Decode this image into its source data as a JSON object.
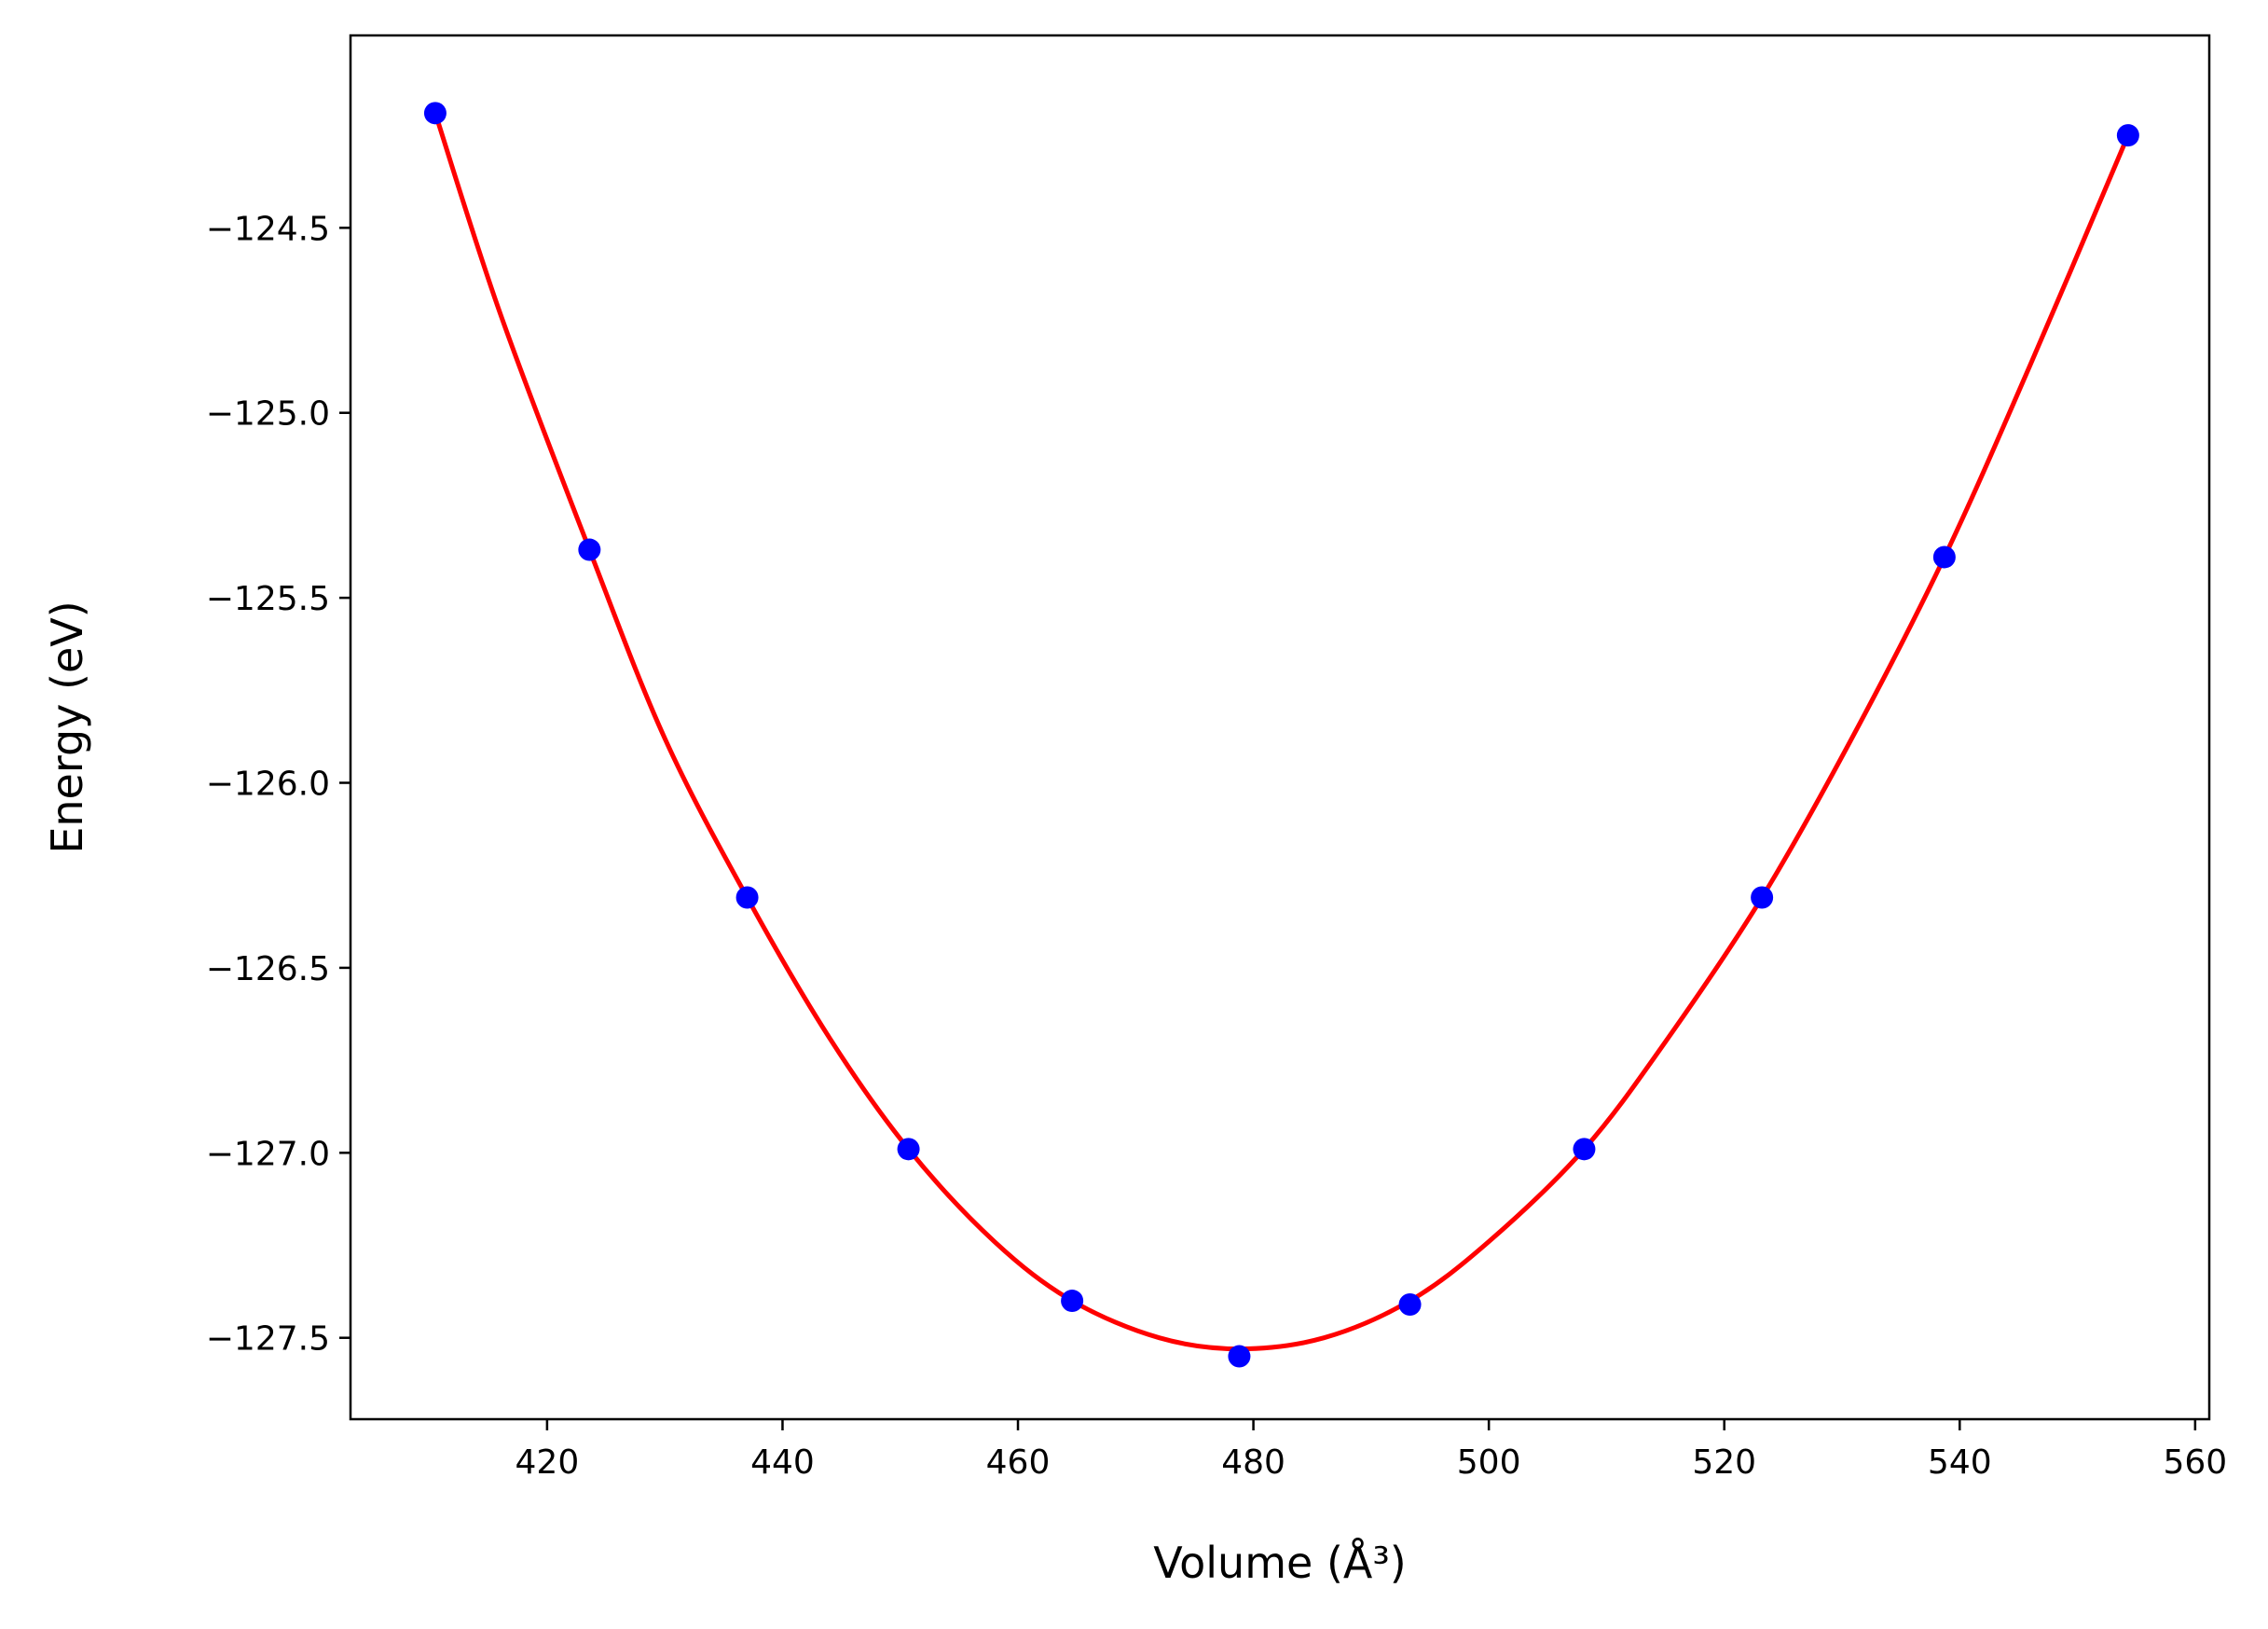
{
  "chart_data": {
    "type": "scatter",
    "xlabel": "Volume (Å³)",
    "ylabel": "Energy (eV)",
    "xlim": [
      403.3,
      561.2
    ],
    "ylim": [
      -127.72,
      -123.98
    ],
    "x_ticks": [
      420,
      440,
      460,
      480,
      500,
      520,
      540,
      560
    ],
    "x_tick_labels": [
      "420",
      "440",
      "460",
      "480",
      "500",
      "520",
      "540",
      "560"
    ],
    "y_ticks": [
      -124.5,
      -125.0,
      -125.5,
      -126.0,
      -126.5,
      -127.0,
      -127.5
    ],
    "y_tick_labels": [
      "−124.5",
      "−125.0",
      "−125.5",
      "−126.0",
      "−126.5",
      "−127.0",
      "−127.5"
    ],
    "grid": false,
    "series": [
      {
        "kind": "scatter",
        "color": "#0000ff",
        "x": [
          410.5,
          423.6,
          437.0,
          450.7,
          464.6,
          478.8,
          493.3,
          508.1,
          523.2,
          538.7,
          554.3
        ],
        "y": [
          -124.19,
          -125.37,
          -126.31,
          -126.99,
          -127.4,
          -127.55,
          -127.41,
          -126.99,
          -126.31,
          -125.39,
          -124.25
        ]
      },
      {
        "kind": "line",
        "color": "#ff0000",
        "x": [
          410.5,
          416,
          423.6,
          430,
          437.0,
          444,
          450.7,
          458,
          464.6,
          472,
          478.8,
          486,
          493.3,
          500,
          508.1,
          515,
          523.2,
          531,
          538.7,
          546,
          554.3
        ],
        "y": [
          -124.19,
          -124.73,
          -125.37,
          -125.88,
          -126.31,
          -126.69,
          -126.99,
          -127.24,
          -127.4,
          -127.5,
          -127.53,
          -127.5,
          -127.4,
          -127.24,
          -126.99,
          -126.7,
          -126.31,
          -125.87,
          -125.39,
          -124.87,
          -124.25
        ]
      }
    ]
  }
}
